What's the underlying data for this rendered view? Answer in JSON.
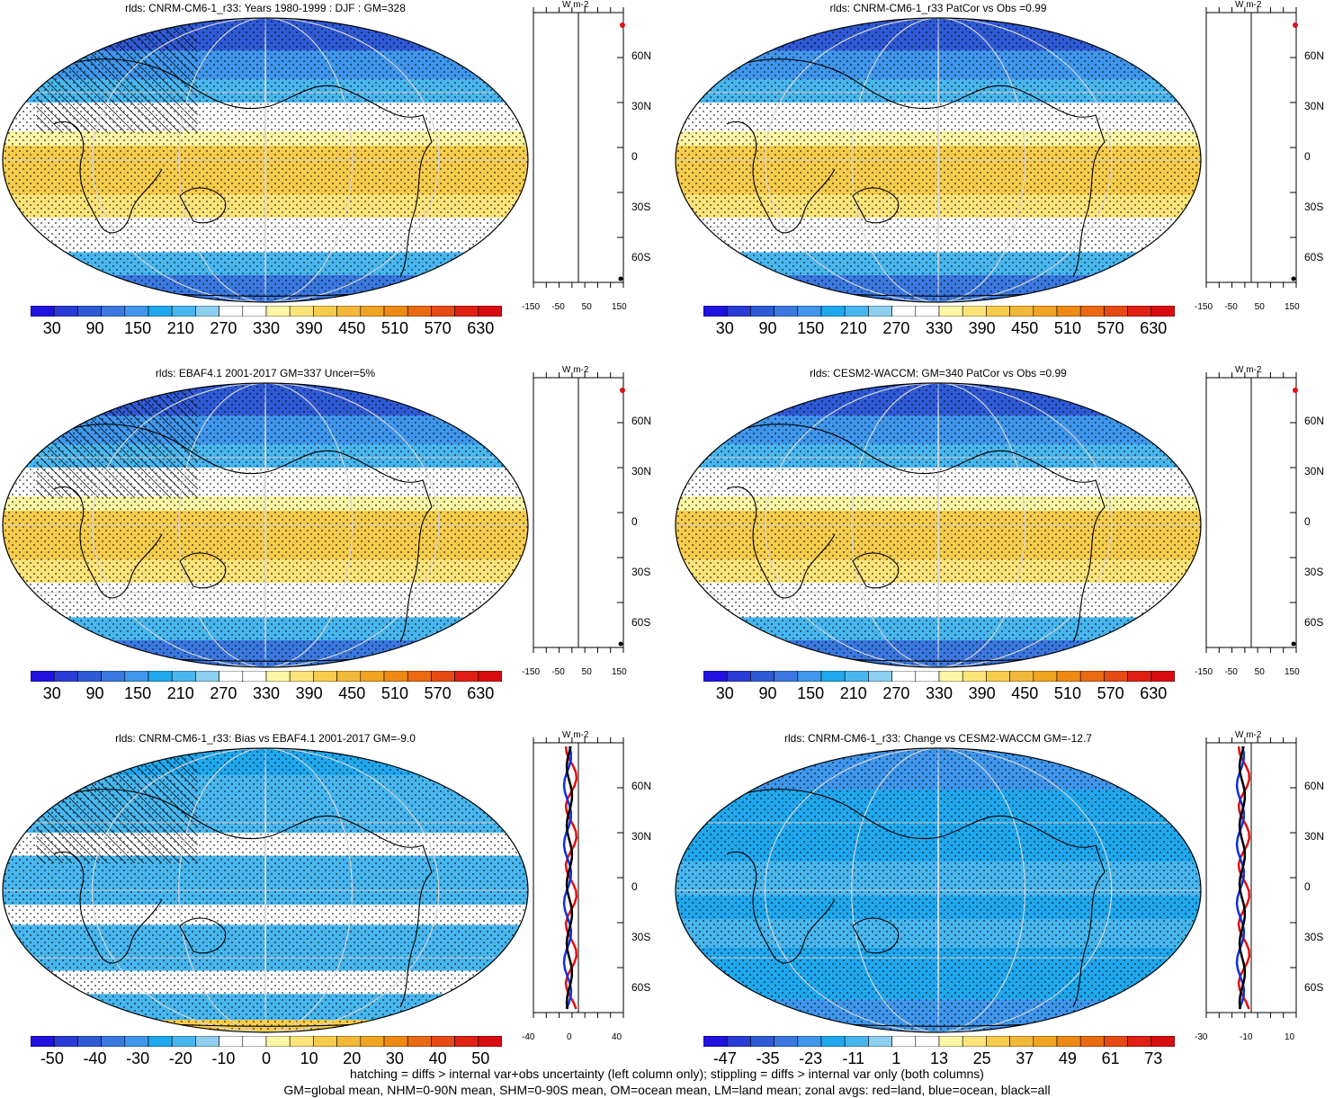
{
  "panels": [
    {
      "id": "p1",
      "title": "rlds: CNRM-CM6-1_r33: Years 1980-1999 : DJF : GM=328",
      "type": "abs",
      "hatch": true
    },
    {
      "id": "p2",
      "title": "rlds: CNRM-CM6-1_r33 PatCor vs Obs =0.99",
      "type": "abs",
      "hatch": false
    },
    {
      "id": "p3",
      "title": "rlds: EBAF4.1 2001-2017 GM=337 Uncer=5%",
      "type": "abs",
      "hatch": true
    },
    {
      "id": "p4",
      "title": "rlds: CESM2-WACCM: GM=340 PatCor vs Obs =0.99",
      "type": "abs",
      "hatch": false
    },
    {
      "id": "p5",
      "title": "rlds: CNRM-CM6-1_r33: Bias vs EBAF4.1 2001-2017 GM=-9.0",
      "type": "bias",
      "hatch": true
    },
    {
      "id": "p6",
      "title": "rlds: CNRM-CM6-1_r33: Change vs CESM2-WACCM GM=-12.7",
      "type": "change",
      "hatch": false
    }
  ],
  "colorbars": {
    "abs": {
      "labels": [
        "30",
        "90",
        "150",
        "210",
        "270",
        "330",
        "390",
        "450",
        "510",
        "570",
        "630"
      ]
    },
    "bias": {
      "labels": [
        "-50",
        "-40",
        "-30",
        "-20",
        "-10",
        "0",
        "10",
        "20",
        "30",
        "40",
        "50"
      ]
    },
    "change": {
      "labels": [
        "-47",
        "-35",
        "-23",
        "-11",
        "1",
        "13",
        "25",
        "37",
        "49",
        "61",
        "73"
      ]
    }
  },
  "colors": [
    "#1f12e0",
    "#2b3bd6",
    "#2f5ad6",
    "#3a78e0",
    "#3f96ec",
    "#1fa8ee",
    "#48b6ee",
    "#8ccfee",
    "#ffffff",
    "#ffffff",
    "#fdf6a6",
    "#fde47a",
    "#f6cc4c",
    "#f2b83a",
    "#f0a422",
    "#ee8a14",
    "#ea6a12",
    "#e64a14",
    "#e02014",
    "#d80c10"
  ],
  "zonal": {
    "units": "W m-2",
    "abs_ticks": [
      "-150",
      "-50",
      "50",
      "150"
    ],
    "bias_ticks": [
      "-40",
      "0",
      "40"
    ],
    "change_ticks": [
      "-30",
      "-10",
      "10"
    ],
    "lat_labels": [
      "60N",
      "30N",
      "0",
      "30S",
      "60S"
    ]
  },
  "footer": {
    "line1": "hatching = diffs > internal var+obs uncertainty (left column only); stippling = diffs > internal var only (both columns)",
    "line2": "GM=global mean, NHM=0-90N mean, SHM=0-90S mean, OM=ocean mean, LM=land mean; zonal avgs: red=land, blue=ocean, black=all"
  }
}
